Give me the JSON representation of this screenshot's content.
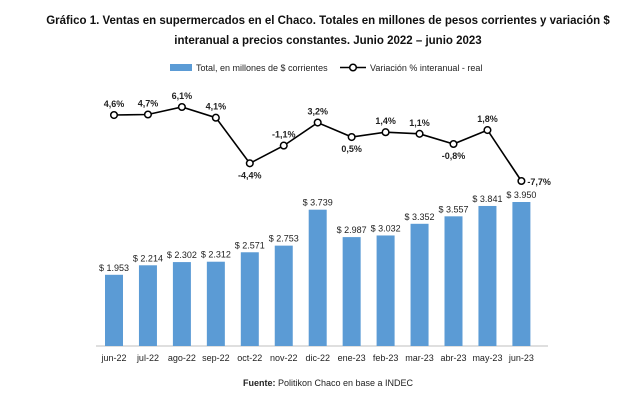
{
  "title_line1": "Gráfico 1. Ventas en supermercados en el Chaco. Totales en millones de pesos corrientes y variación $",
  "title_line2": "interanual a precios constantes. Junio 2022 – junio 2023",
  "source_label": "Fuente:",
  "source_text": "Politikon Chaco en base a INDEC",
  "colors": {
    "bar": "#5B9BD5",
    "line": "#000000",
    "axis": "#bfbfbf"
  },
  "chart_data": {
    "type": "bar",
    "categories": [
      "jun-22",
      "jul-22",
      "ago-22",
      "sep-22",
      "oct-22",
      "nov-22",
      "dic-22",
      "ene-23",
      "feb-23",
      "mar-23",
      "abr-23",
      "may-23",
      "jun-23"
    ],
    "series": [
      {
        "name": "Total, en millones de $ corrientes",
        "type": "bar",
        "values": [
          1953,
          2214,
          2302,
          2312,
          2571,
          2753,
          3739,
          2987,
          3032,
          3352,
          3557,
          3841,
          3950
        ],
        "labels": [
          "$ 1.953",
          "$ 2.214",
          "$ 2.302",
          "$ 2.312",
          "$ 2.571",
          "$ 2.753",
          "$ 3.739",
          "$ 2.987",
          "$ 3.032",
          "$ 3.352",
          "$ 3.557",
          "$ 3.841",
          "$ 3.950"
        ]
      },
      {
        "name": "Variación % interanual - real",
        "type": "line",
        "values": [
          4.6,
          4.7,
          6.1,
          4.1,
          -4.4,
          -1.1,
          3.2,
          0.5,
          1.4,
          1.1,
          -0.8,
          1.8,
          -7.7
        ],
        "labels": [
          "4,6%",
          "4,7%",
          "6,1%",
          "4,1%",
          "-4,4%",
          "-1,1%",
          "3,2%",
          "0,5%",
          "1,4%",
          "1,1%",
          "-0,8%",
          "1,8%",
          "-7,7%"
        ]
      }
    ],
    "legend_position": "top",
    "grid": false
  }
}
